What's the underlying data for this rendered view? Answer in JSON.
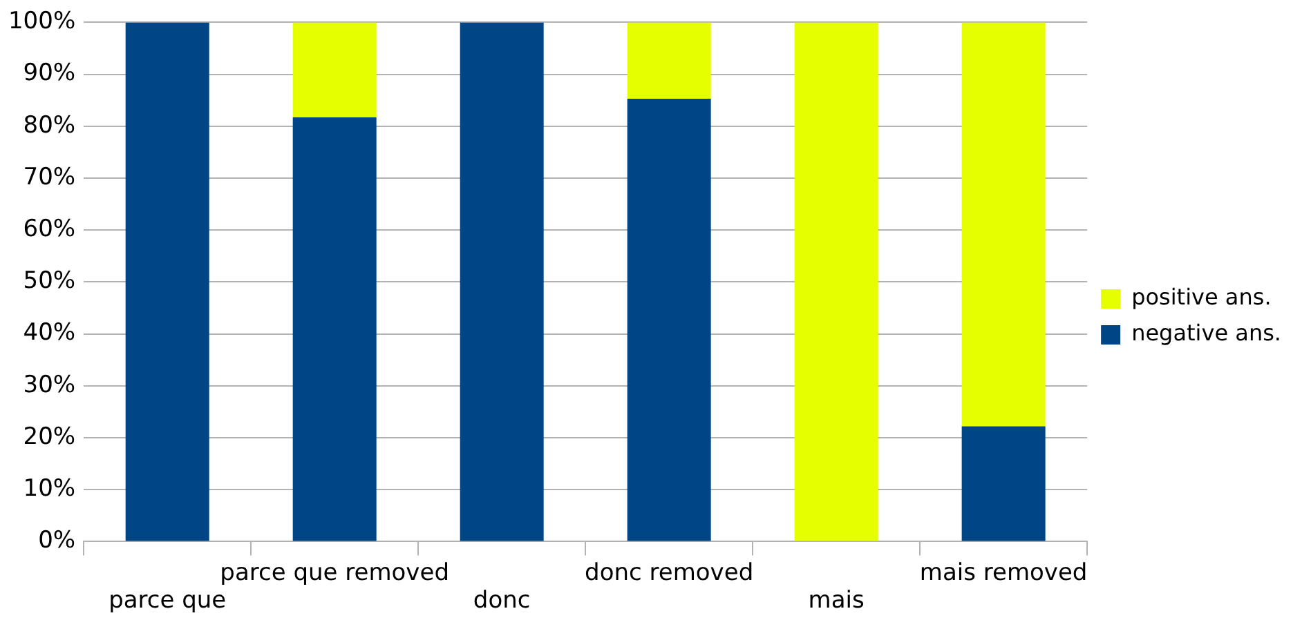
{
  "chart_data": {
    "type": "bar",
    "stacked": true,
    "categories": [
      "parce que",
      "parce que removed",
      "donc",
      "donc removed",
      "mais",
      "mais removed"
    ],
    "series": [
      {
        "name": "negative ans.",
        "color": "#004586",
        "values": [
          100,
          81.7,
          100,
          85.3,
          0,
          22.2
        ]
      },
      {
        "name": "positive ans.",
        "color": "#e6ff00",
        "values": [
          0,
          18.3,
          0,
          14.7,
          100,
          77.8
        ]
      }
    ],
    "ylim": [
      0,
      100
    ],
    "yticks": [
      {
        "value": 0,
        "label": "0%"
      },
      {
        "value": 10,
        "label": "10%"
      },
      {
        "value": 20,
        "label": "20%"
      },
      {
        "value": 30,
        "label": "30%"
      },
      {
        "value": 40,
        "label": "40%"
      },
      {
        "value": 50,
        "label": "50%"
      },
      {
        "value": 60,
        "label": "60%"
      },
      {
        "value": 70,
        "label": "70%"
      },
      {
        "value": 80,
        "label": "80%"
      },
      {
        "value": 90,
        "label": "90%"
      },
      {
        "value": 100,
        "label": "100%"
      }
    ],
    "grid": "y",
    "legend": "right"
  }
}
